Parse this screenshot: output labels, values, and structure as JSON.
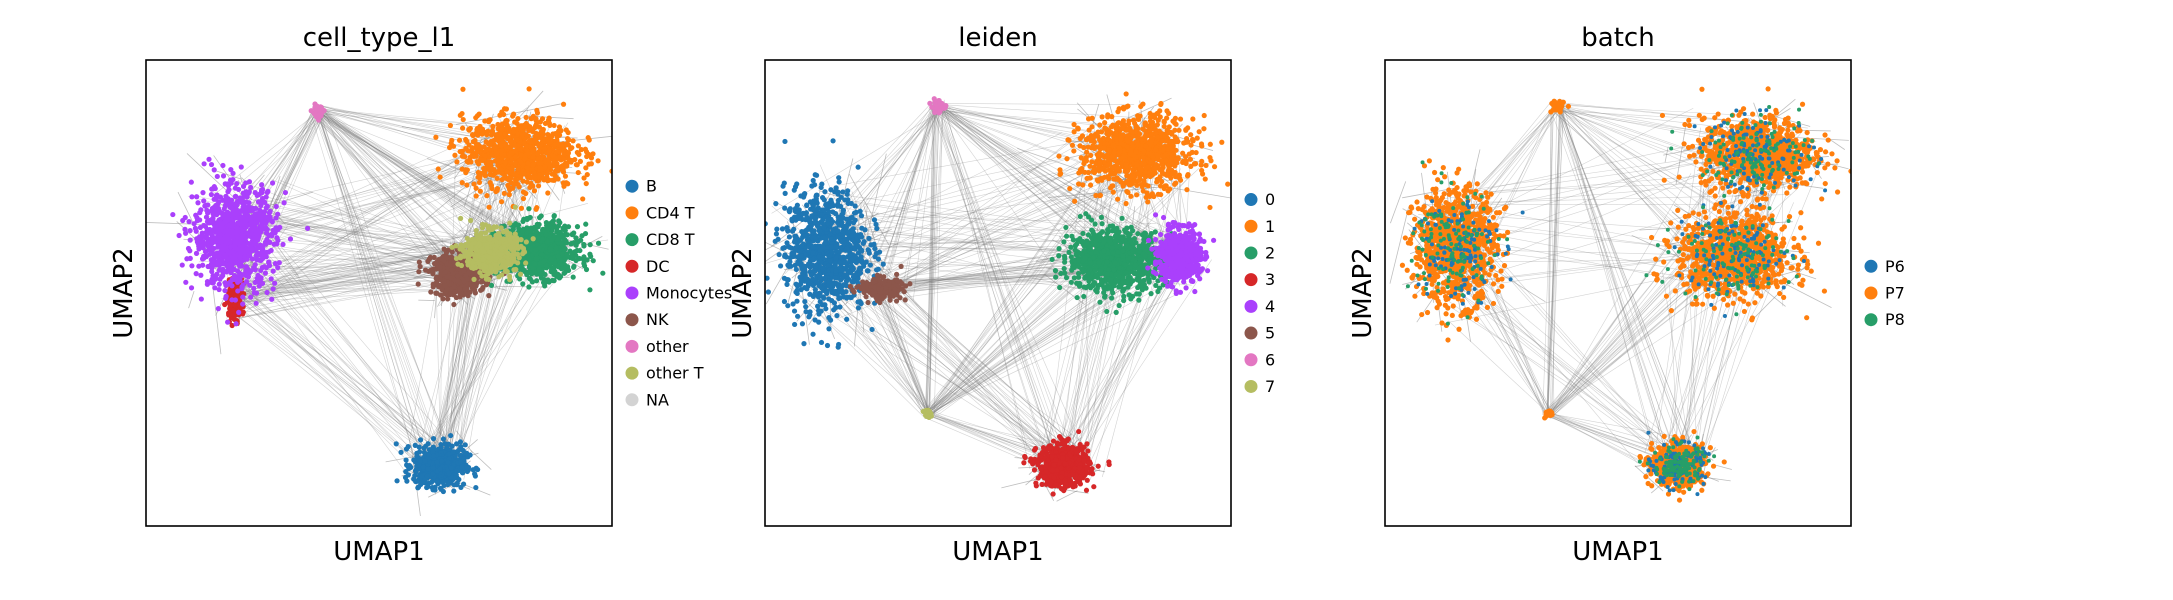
{
  "figure": {
    "background": "#ffffff",
    "edge_color": "#808080"
  },
  "chart_data": [
    {
      "type": "scatter",
      "title": "cell_type_l1",
      "xlabel": "UMAP1",
      "ylabel": "UMAP2",
      "xticks": [],
      "yticks": [],
      "grid": false,
      "legend_position": "right",
      "graph_edges": "paga",
      "series": [
        {
          "name": "B",
          "color": "#1f77b4"
        },
        {
          "name": "CD4 T",
          "color": "#ff7f0e"
        },
        {
          "name": "CD8 T",
          "color": "#279e68"
        },
        {
          "name": "DC",
          "color": "#d62728"
        },
        {
          "name": "Monocytes",
          "color": "#aa40fc"
        },
        {
          "name": "NK",
          "color": "#8c564b"
        },
        {
          "name": "other",
          "color": "#e377c2"
        },
        {
          "name": "other T",
          "color": "#b5bd61"
        },
        {
          "name": "NA",
          "color": "#d3d3d3"
        }
      ],
      "clusters": [
        {
          "series": "B",
          "x": 0.63,
          "y": 0.13,
          "rx": 0.05,
          "ry": 0.04
        },
        {
          "series": "CD4 T",
          "x": 0.8,
          "y": 0.8,
          "rx": 0.11,
          "ry": 0.07
        },
        {
          "series": "CD8 T",
          "x": 0.84,
          "y": 0.59,
          "rx": 0.08,
          "ry": 0.05
        },
        {
          "series": "DC",
          "x": 0.19,
          "y": 0.49,
          "rx": 0.015,
          "ry": 0.04
        },
        {
          "series": "Monocytes",
          "x": 0.19,
          "y": 0.62,
          "rx": 0.08,
          "ry": 0.1
        },
        {
          "series": "NK",
          "x": 0.67,
          "y": 0.54,
          "rx": 0.05,
          "ry": 0.04
        },
        {
          "series": "other",
          "x": 0.37,
          "y": 0.89,
          "rx": 0.012,
          "ry": 0.012
        },
        {
          "series": "other T",
          "x": 0.74,
          "y": 0.59,
          "rx": 0.05,
          "ry": 0.04
        }
      ]
    },
    {
      "type": "scatter",
      "title": "leiden",
      "xlabel": "UMAP1",
      "ylabel": "UMAP2",
      "xticks": [],
      "yticks": [],
      "grid": false,
      "legend_position": "right",
      "graph_edges": "paga",
      "series": [
        {
          "name": "0",
          "color": "#1f77b4"
        },
        {
          "name": "1",
          "color": "#ff7f0e"
        },
        {
          "name": "2",
          "color": "#279e68"
        },
        {
          "name": "3",
          "color": "#d62728"
        },
        {
          "name": "4",
          "color": "#aa40fc"
        },
        {
          "name": "5",
          "color": "#8c564b"
        },
        {
          "name": "6",
          "color": "#e377c2"
        },
        {
          "name": "7",
          "color": "#b5bd61"
        }
      ],
      "clusters": [
        {
          "series": "0",
          "x": 0.13,
          "y": 0.59,
          "rx": 0.08,
          "ry": 0.12
        },
        {
          "series": "1",
          "x": 0.8,
          "y": 0.8,
          "rx": 0.11,
          "ry": 0.07
        },
        {
          "series": "2",
          "x": 0.75,
          "y": 0.57,
          "rx": 0.09,
          "ry": 0.06
        },
        {
          "series": "3",
          "x": 0.64,
          "y": 0.13,
          "rx": 0.05,
          "ry": 0.04
        },
        {
          "series": "4",
          "x": 0.89,
          "y": 0.58,
          "rx": 0.04,
          "ry": 0.05
        },
        {
          "series": "5",
          "x": 0.25,
          "y": 0.51,
          "rx": 0.04,
          "ry": 0.02
        },
        {
          "series": "6",
          "x": 0.37,
          "y": 0.9,
          "rx": 0.012,
          "ry": 0.012
        },
        {
          "series": "7",
          "x": 0.35,
          "y": 0.24,
          "rx": 0.008,
          "ry": 0.008
        }
      ]
    },
    {
      "type": "scatter",
      "title": "batch",
      "xlabel": "UMAP1",
      "ylabel": "UMAP2",
      "xticks": [],
      "yticks": [],
      "grid": false,
      "legend_position": "right",
      "graph_edges": "paga",
      "series": [
        {
          "name": "P6",
          "color": "#1f77b4"
        },
        {
          "name": "P7",
          "color": "#ff7f0e"
        },
        {
          "name": "P8",
          "color": "#279e68"
        }
      ],
      "clusters": [
        {
          "series": "P7",
          "x": 0.8,
          "y": 0.8,
          "rx": 0.11,
          "ry": 0.07
        },
        {
          "series": "P7",
          "x": 0.75,
          "y": 0.58,
          "rx": 0.11,
          "ry": 0.08
        },
        {
          "series": "P7",
          "x": 0.15,
          "y": 0.6,
          "rx": 0.08,
          "ry": 0.11
        },
        {
          "series": "P7",
          "x": 0.63,
          "y": 0.13,
          "rx": 0.05,
          "ry": 0.04
        },
        {
          "series": "P7",
          "x": 0.37,
          "y": 0.9,
          "rx": 0.012,
          "ry": 0.012
        },
        {
          "series": "P7",
          "x": 0.35,
          "y": 0.24,
          "rx": 0.008,
          "ry": 0.008
        }
      ]
    }
  ]
}
